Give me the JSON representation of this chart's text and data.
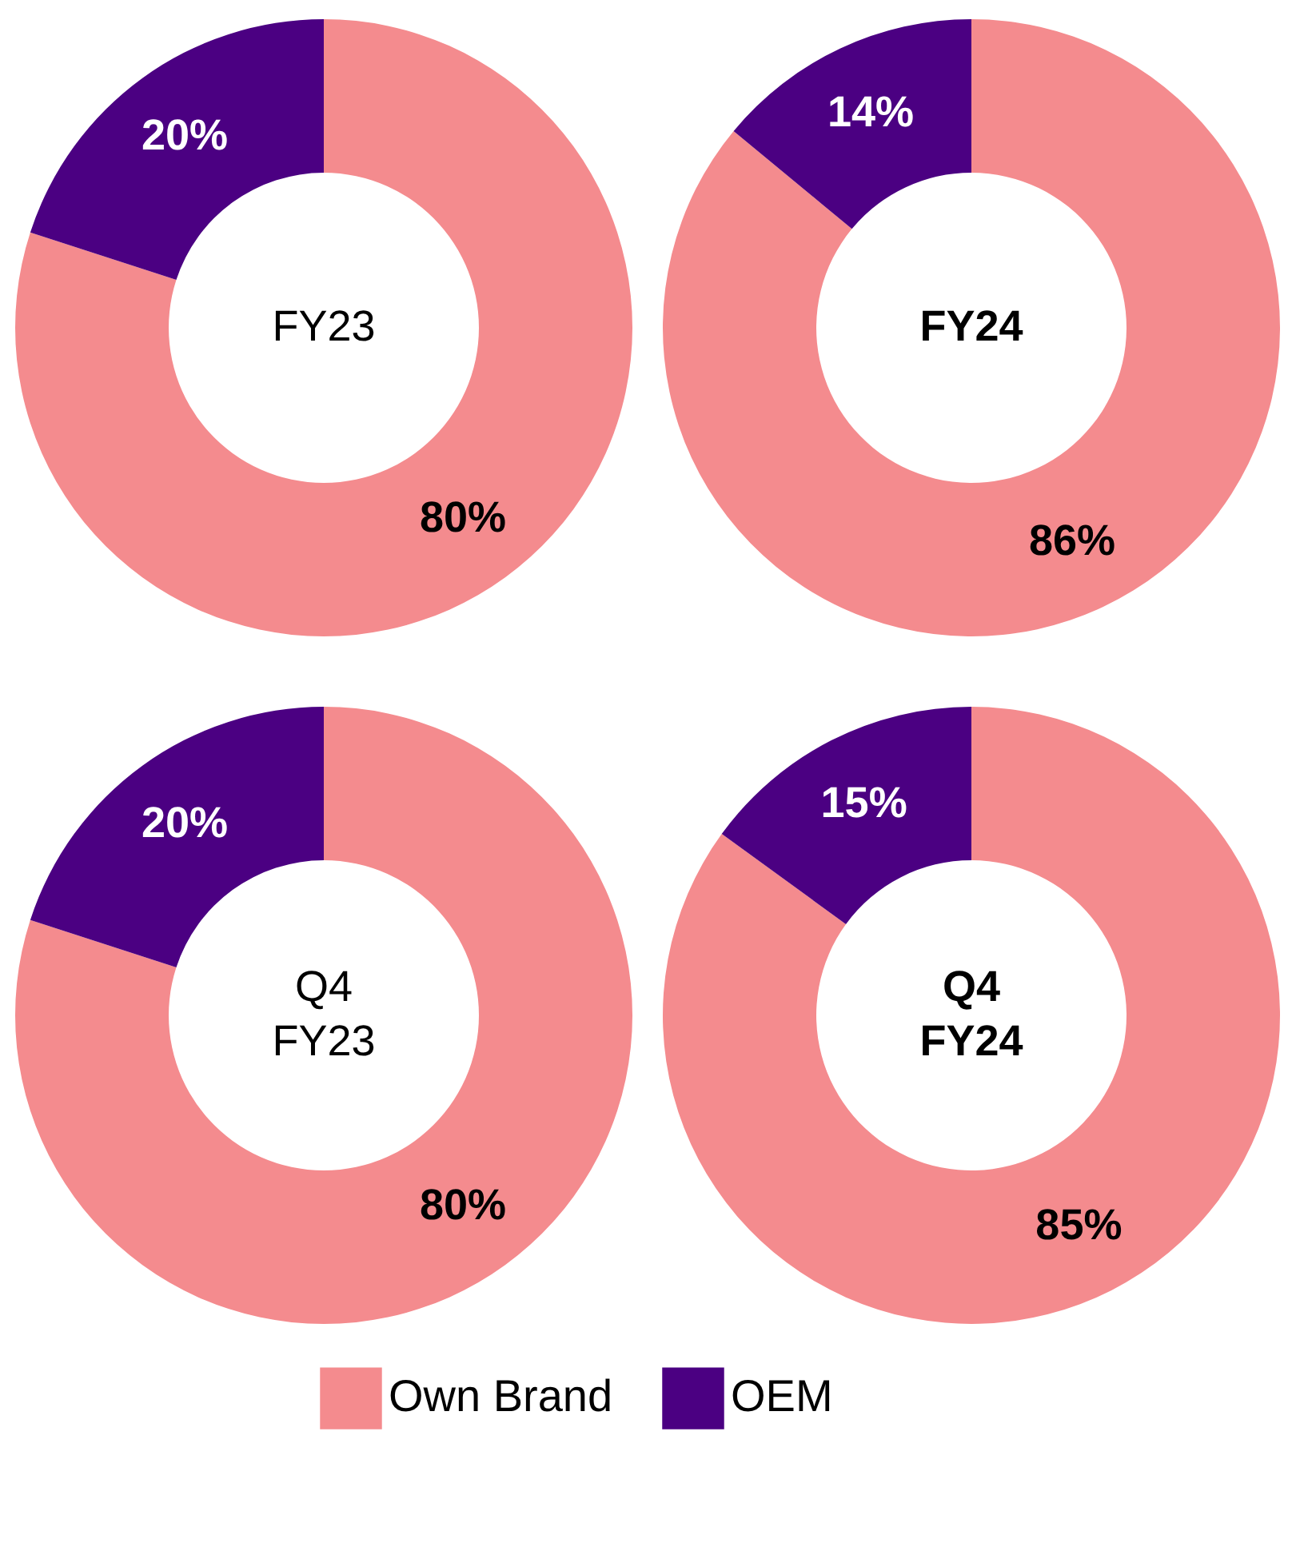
{
  "chart_data": [
    {
      "type": "donut",
      "title": "FY23",
      "categories": [
        null,
        null
      ],
      "values": [
        80,
        20
      ],
      "colors": [
        "#f48b8e",
        "#4b0082"
      ],
      "value_labels": [
        "80%",
        "20%"
      ]
    },
    {
      "type": "donut",
      "title": "FY24",
      "categories": [
        null,
        null
      ],
      "values": [
        86,
        14
      ],
      "colors": [
        "#f48b8e",
        "#4b0082"
      ],
      "value_labels": [
        "86%",
        "14%"
      ]
    },
    {
      "type": "donut",
      "title": "Q4 FY23",
      "categories": [
        "Own Brand",
        "OEM"
      ],
      "values": [
        80,
        20
      ],
      "colors": [
        "#f48b8e",
        "#4b0082"
      ],
      "value_labels": [
        "80%",
        "20%"
      ],
      "legend": "bottom"
    },
    {
      "type": "donut",
      "title": "Q4 FY24",
      "categories": [
        null,
        null
      ],
      "values": [
        85,
        15
      ],
      "colors": [
        "#f48b8e",
        "#4b0082"
      ],
      "value_labels": [
        "85%",
        "15%"
      ]
    }
  ]
}
